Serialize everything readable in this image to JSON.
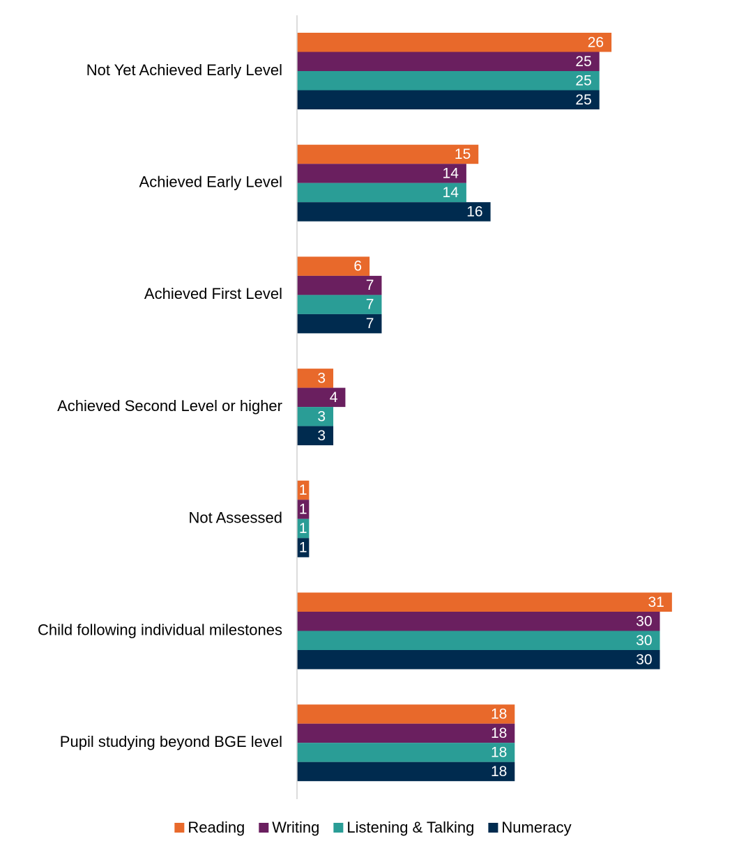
{
  "chart_data": {
    "type": "bar",
    "orientation": "horizontal",
    "categories": [
      "Not Yet Achieved Early Level",
      "Achieved Early Level",
      "Achieved First Level",
      "Achieved Second Level or higher",
      "Not Assessed",
      "Child following individual milestones",
      "Pupil studying beyond BGE level"
    ],
    "series": [
      {
        "name": "Reading",
        "color": "#E8692B",
        "values": [
          26,
          15,
          6,
          3,
          1,
          31,
          18
        ]
      },
      {
        "name": "Writing",
        "color": "#6A1F5F",
        "values": [
          25,
          14,
          7,
          4,
          1,
          30,
          18
        ]
      },
      {
        "name": "Listening & Talking",
        "color": "#2A9D96",
        "values": [
          25,
          14,
          7,
          3,
          1,
          30,
          18
        ]
      },
      {
        "name": "Numeracy",
        "color": "#002B4F",
        "values": [
          25,
          16,
          7,
          3,
          1,
          30,
          18
        ]
      }
    ],
    "data_labels": true,
    "grid": false,
    "legend_position": "bottom",
    "title": "",
    "xlabel": "",
    "ylabel": ""
  }
}
